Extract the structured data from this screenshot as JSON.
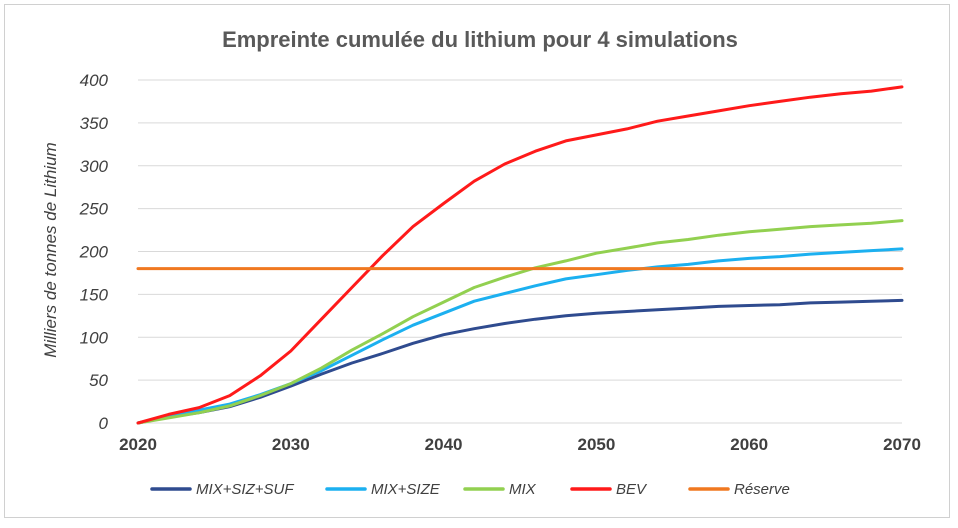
{
  "chart_data": {
    "type": "line",
    "title": "Empreinte cumulée du lithium pour 4 simulations",
    "xlabel": "",
    "ylabel": "Milliers de tonnes de Lithium",
    "xlim": [
      2020,
      2070
    ],
    "ylim": [
      0,
      400
    ],
    "x_ticks": [
      2020,
      2030,
      2040,
      2050,
      2060,
      2070
    ],
    "y_ticks": [
      0,
      50,
      100,
      150,
      200,
      250,
      300,
      350,
      400
    ],
    "grid": true,
    "legend_position": "bottom",
    "x": [
      2020,
      2022,
      2024,
      2026,
      2028,
      2030,
      2032,
      2034,
      2036,
      2038,
      2040,
      2042,
      2044,
      2046,
      2048,
      2050,
      2052,
      2054,
      2056,
      2058,
      2060,
      2062,
      2064,
      2066,
      2068,
      2070
    ],
    "series": [
      {
        "name": "MIX+SIZ+SUF",
        "color": "#2f4b8f",
        "values": [
          0,
          7,
          12,
          19,
          30,
          43,
          57,
          70,
          81,
          93,
          103,
          110,
          116,
          121,
          125,
          128,
          130,
          132,
          134,
          136,
          137,
          138,
          140,
          141,
          142,
          143
        ]
      },
      {
        "name": "MIX+SIZE",
        "color": "#1cb0f0",
        "values": [
          0,
          8,
          15,
          22,
          33,
          46,
          61,
          79,
          97,
          114,
          128,
          142,
          151,
          160,
          168,
          173,
          178,
          182,
          185,
          189,
          192,
          194,
          197,
          199,
          201,
          203
        ]
      },
      {
        "name": "MIX",
        "color": "#92d050",
        "values": [
          0,
          6,
          12,
          20,
          32,
          46,
          64,
          85,
          104,
          124,
          141,
          158,
          170,
          181,
          189,
          198,
          204,
          210,
          214,
          219,
          223,
          226,
          229,
          231,
          233,
          236
        ]
      },
      {
        "name": "BEV",
        "color": "#ff1a1a",
        "values": [
          0,
          10,
          18,
          32,
          55,
          84,
          121,
          158,
          195,
          229,
          256,
          282,
          302,
          317,
          329,
          336,
          343,
          352,
          358,
          364,
          370,
          375,
          380,
          384,
          387,
          392
        ]
      },
      {
        "name": "Réserve",
        "color": "#f07820",
        "values": [
          180,
          180,
          180,
          180,
          180,
          180,
          180,
          180,
          180,
          180,
          180,
          180,
          180,
          180,
          180,
          180,
          180,
          180,
          180,
          180,
          180,
          180,
          180,
          180,
          180,
          180
        ]
      }
    ]
  }
}
